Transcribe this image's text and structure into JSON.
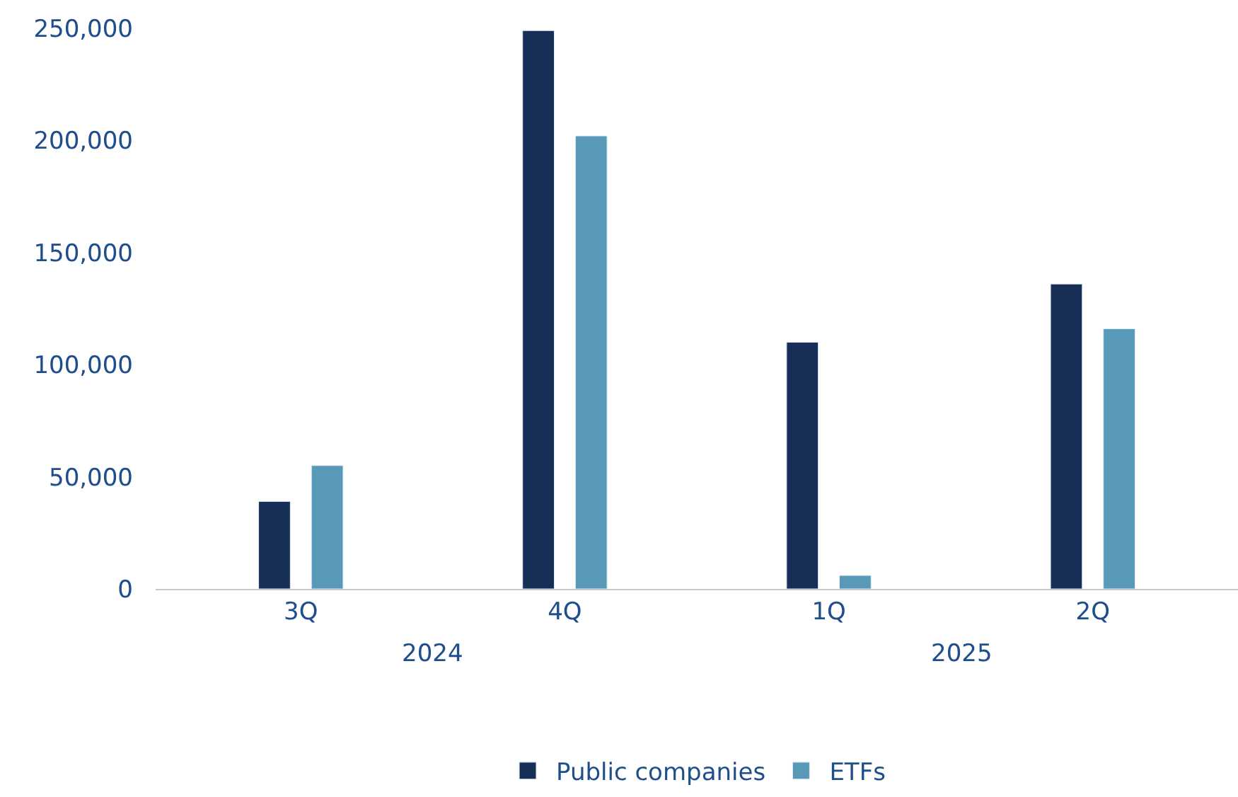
{
  "chart_data": {
    "type": "bar",
    "categories": [
      "3Q",
      "4Q",
      "1Q",
      "2Q"
    ],
    "series": [
      {
        "name": "Public companies",
        "color": "#172f56",
        "values": [
          39000,
          249000,
          110000,
          136000
        ]
      },
      {
        "name": "ETFs",
        "color": "#5799b7",
        "values": [
          55000,
          202000,
          6000,
          116000
        ]
      }
    ],
    "ylim": [
      0,
      250000
    ],
    "yticks": [
      {
        "value": 0,
        "label": "0"
      },
      {
        "value": 50000,
        "label": "50,000"
      },
      {
        "value": 100000,
        "label": "100,000"
      },
      {
        "value": 150000,
        "label": "150,000"
      },
      {
        "value": 200000,
        "label": "200,000"
      },
      {
        "value": 250000,
        "label": "250,000"
      }
    ],
    "annotations": [
      "2024",
      "2025"
    ],
    "legend": "bottom"
  }
}
